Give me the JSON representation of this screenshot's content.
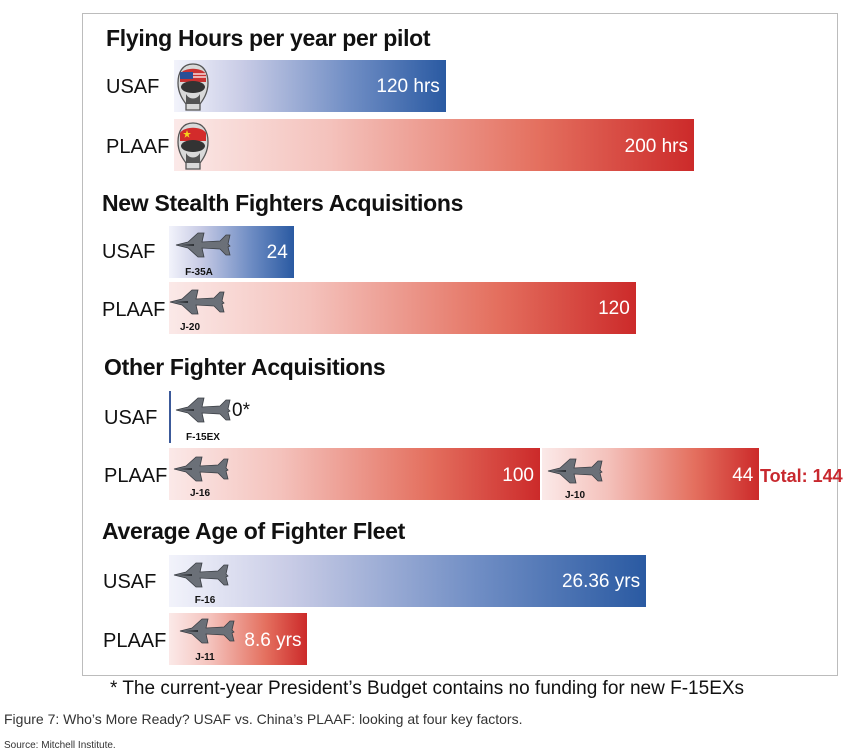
{
  "chart_data": [
    {
      "type": "bar",
      "title": "Flying Hours per year per pilot",
      "categories": [
        "USAF",
        "PLAAF"
      ],
      "values": [
        120,
        200
      ],
      "value_labels": [
        "120 hrs",
        "200 hrs"
      ],
      "icons": [
        "us-pilot-helmet-icon",
        "china-pilot-helmet-icon"
      ],
      "colors": [
        "#2a5aa2",
        "#cc2a2a"
      ]
    },
    {
      "type": "bar",
      "title": "New Stealth Fighters Acquisitions",
      "categories": [
        "USAF",
        "PLAAF"
      ],
      "values": [
        24,
        120
      ],
      "value_labels": [
        "24",
        "120"
      ],
      "aircraft": [
        "F-35A",
        "J-20"
      ],
      "colors": [
        "#2a5aa2",
        "#cc2a2a"
      ]
    },
    {
      "type": "bar",
      "title": "Other Fighter Acquisitions",
      "categories": [
        "USAF",
        "PLAAF"
      ],
      "series": [
        {
          "values": [
            0,
            100
          ],
          "value_labels": [
            "0*",
            "100"
          ]
        },
        {
          "values": [
            null,
            44
          ],
          "value_labels": [
            "",
            "44"
          ]
        }
      ],
      "aircraft": [
        [
          "F-15EX"
        ],
        [
          "J-16",
          "J-10"
        ]
      ],
      "total_label": "Total: 144",
      "colors": [
        "#2a5aa2",
        "#cc2a2a"
      ]
    },
    {
      "type": "bar",
      "title": "Average Age of Fighter Fleet",
      "categories": [
        "USAF",
        "PLAAF"
      ],
      "values": [
        26.36,
        8.6
      ],
      "value_labels": [
        "26.36 yrs",
        "8.6 yrs"
      ],
      "aircraft": [
        "F-16",
        "J-11"
      ],
      "colors": [
        "#2a5aa2",
        "#cc2a2a"
      ]
    }
  ],
  "footnote": "* The current-year President’s Budget contains no funding for new F-15EXs",
  "caption": "Figure 7: Who’s More Ready? USAF vs. China’s PLAAF: looking at four key factors.",
  "source": "Source: Mitchell Institute."
}
